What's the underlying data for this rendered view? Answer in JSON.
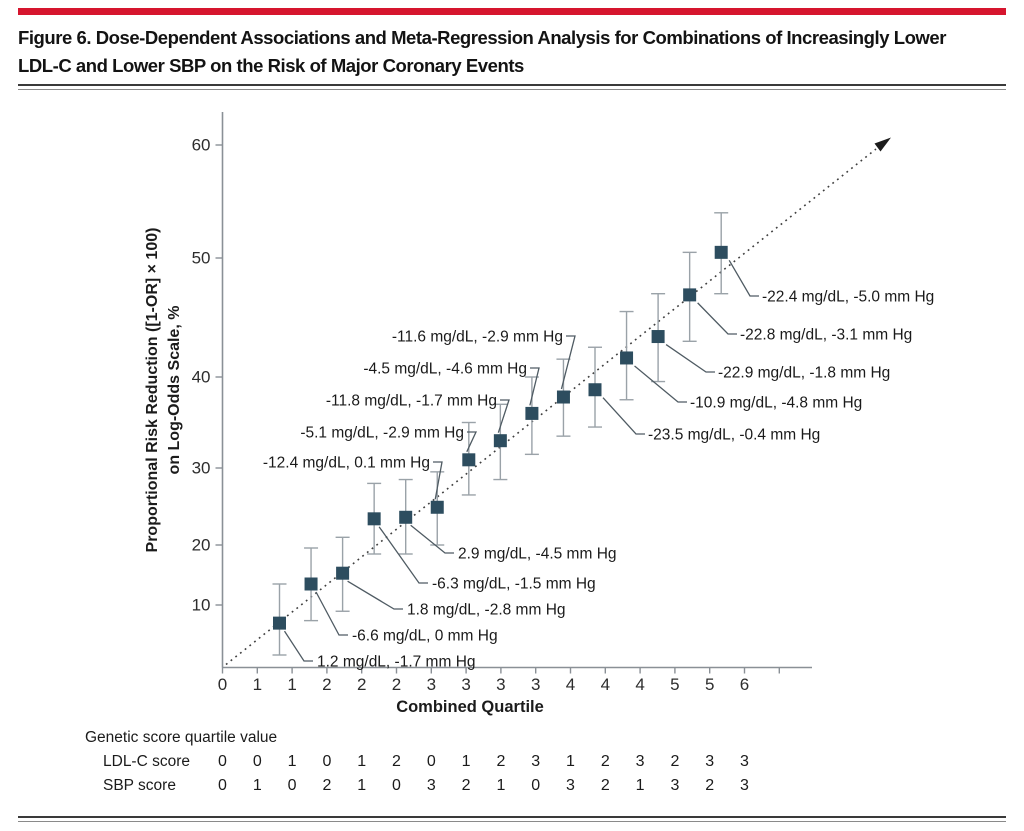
{
  "figure": {
    "title_line1": "Figure 6. Dose-Dependent Associations and Meta-Regression Analysis for Combinations of Increasingly Lower",
    "title_line2": "LDL-C and Lower SBP on the Risk of Major Coronary Events"
  },
  "colors": {
    "accent_bar": "#d6152e",
    "marker": "#2d4d5f",
    "error_bar": "#9aa2a8",
    "trend_line": "#3f3f3f",
    "leader_line": "#4f5b63",
    "axis": "#8a9096",
    "text": "#1b1b1b"
  },
  "chart_data": {
    "type": "scatter",
    "title": "",
    "xlabel": "Combined Quartile",
    "ylabel_line1": "Proportional Risk Reduction ([1-OR] × 100)",
    "ylabel_line2": "on Log-Odds Scale, %",
    "y_scale": "log-odds",
    "x_tick_labels": [
      "0",
      "1",
      "1",
      "2",
      "2",
      "2",
      "3",
      "3",
      "3",
      "3",
      "4",
      "4",
      "4",
      "5",
      "5",
      "6"
    ],
    "y_tick_labels": [
      "10",
      "20",
      "30",
      "40",
      "50",
      "60"
    ],
    "ylim": [
      0,
      63
    ],
    "grid": false,
    "trend_line": {
      "style": "dotted",
      "arrow": true
    },
    "points": [
      {
        "annotation": "1.2 mg/dL, -1.7 mm Hg",
        "risk_reduction_pct": 7.1,
        "ci_low": 2.0,
        "ci_high": 13.5
      },
      {
        "annotation": "-6.6 mg/dL, 0 mm Hg",
        "risk_reduction_pct": 13.5,
        "ci_low": 7.5,
        "ci_high": 19.5
      },
      {
        "annotation": "1.8 mg/dL, -2.8 mm Hg",
        "risk_reduction_pct": 15.3,
        "ci_low": 9.0,
        "ci_high": 21.0
      },
      {
        "annotation": "-6.3 mg/dL, -1.5 mm Hg",
        "risk_reduction_pct": 23.4,
        "ci_low": 18.5,
        "ci_high": 28.0
      },
      {
        "annotation": "2.9 mg/dL, -4.5 mm Hg",
        "risk_reduction_pct": 23.6,
        "ci_low": 18.5,
        "ci_high": 28.5
      },
      {
        "annotation": "-12.4 mg/dL, 0.1 mm Hg",
        "risk_reduction_pct": 24.9,
        "ci_low": 20.0,
        "ci_high": 29.5
      },
      {
        "annotation": "-5.1 mg/dL, -2.9 mm Hg",
        "risk_reduction_pct": 30.9,
        "ci_low": 26.5,
        "ci_high": 35.0
      },
      {
        "annotation": "-11.8 mg/dL, -1.7 mm Hg",
        "risk_reduction_pct": 33.0,
        "ci_low": 28.5,
        "ci_high": 37.0
      },
      {
        "annotation": "-4.5 mg/dL, -4.6 mm Hg",
        "risk_reduction_pct": 36.0,
        "ci_low": 31.5,
        "ci_high": 40.0
      },
      {
        "annotation": "-11.6 mg/dL, -2.9 mm Hg",
        "risk_reduction_pct": 37.8,
        "ci_low": 33.5,
        "ci_high": 41.5
      },
      {
        "annotation": "-23.5 mg/dL, -0.4 mm Hg",
        "risk_reduction_pct": 38.6,
        "ci_low": 34.5,
        "ci_high": 42.5
      },
      {
        "annotation": "-10.9 mg/dL, -4.8 mm Hg",
        "risk_reduction_pct": 41.6,
        "ci_low": 37.5,
        "ci_high": 45.5
      },
      {
        "annotation": "-22.9 mg/dL, -1.8 mm Hg",
        "risk_reduction_pct": 43.4,
        "ci_low": 39.5,
        "ci_high": 47.0
      },
      {
        "annotation": "-22.8 mg/dL, -3.1 mm Hg",
        "risk_reduction_pct": 46.9,
        "ci_low": 43.0,
        "ci_high": 50.5
      },
      {
        "annotation": "-22.4 mg/dL, -5.0 mm Hg",
        "risk_reduction_pct": 50.5,
        "ci_low": 47.0,
        "ci_high": 54.0
      }
    ]
  },
  "score_table": {
    "header": "Genetic score quartile value",
    "rows": [
      {
        "label": "LDL-C score",
        "values": [
          "0",
          "0",
          "1",
          "0",
          "1",
          "2",
          "0",
          "1",
          "2",
          "3",
          "1",
          "2",
          "3",
          "2",
          "3",
          "3"
        ]
      },
      {
        "label": "SBP score",
        "values": [
          "0",
          "1",
          "0",
          "2",
          "1",
          "0",
          "3",
          "2",
          "1",
          "0",
          "3",
          "2",
          "1",
          "3",
          "2",
          "3"
        ]
      }
    ]
  }
}
